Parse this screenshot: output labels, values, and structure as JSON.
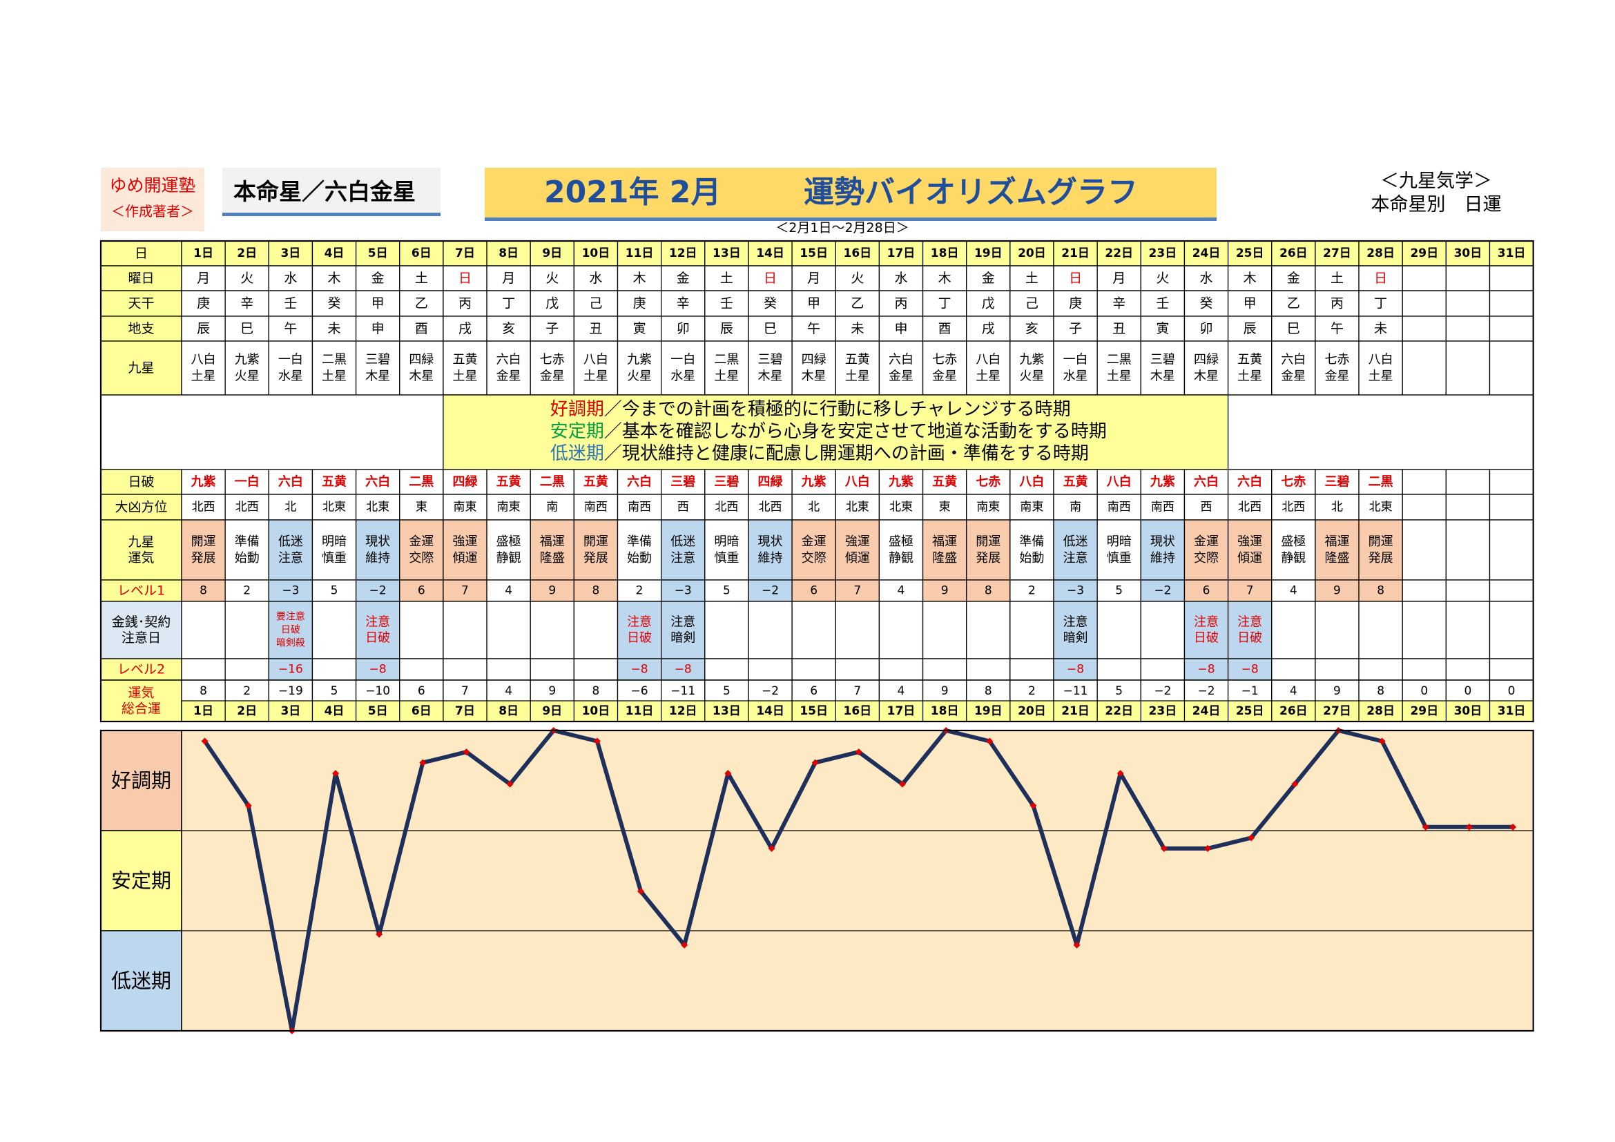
{
  "header": {
    "author_line1": "ゆめ開運塾",
    "author_line2": "＜作成著者＞",
    "honmei": "本命星／六白金星",
    "year_month": "2021年 2月",
    "title": "運勢バイオリズムグラフ",
    "range": "＜2月1日～2月28日＞",
    "school_line1": "＜九星気学＞",
    "school_line2": "本命星別　日運"
  },
  "row_labels": {
    "day": "日",
    "weekday": "曜日",
    "tenkan": "天干",
    "chishi": "地支",
    "kyusei": [
      "九星"
    ],
    "nichiha": "日破",
    "daikyo": "大凶方位",
    "unki": [
      "九星",
      "運気"
    ],
    "level1": "レベル1",
    "money": [
      "金銭･契約",
      "注意日"
    ],
    "level2": "レベル2",
    "total": [
      "運気",
      "総合運"
    ]
  },
  "legend": [
    {
      "term": "好調期",
      "desc": "／今までの計画を積極的に行動に移しチャレンジする時期",
      "color": "#e00000"
    },
    {
      "term": "安定期",
      "desc": "／基本を確認しながら心身を安定させて地道な活動をする時期",
      "color": "#00a040"
    },
    {
      "term": "低迷期",
      "desc": "／現状維持と健康に配慮し開運期への計画・準備をする時期",
      "color": "#2e75b6"
    }
  ],
  "days": [
    "1日",
    "2日",
    "3日",
    "4日",
    "5日",
    "6日",
    "7日",
    "8日",
    "9日",
    "10日",
    "11日",
    "12日",
    "13日",
    "14日",
    "15日",
    "16日",
    "17日",
    "18日",
    "19日",
    "20日",
    "21日",
    "22日",
    "23日",
    "24日",
    "25日",
    "26日",
    "27日",
    "28日",
    "29日",
    "30日",
    "31日"
  ],
  "weekdays": [
    "月",
    "火",
    "水",
    "木",
    "金",
    "土",
    "日",
    "月",
    "火",
    "水",
    "木",
    "金",
    "土",
    "日",
    "月",
    "火",
    "水",
    "木",
    "金",
    "土",
    "日",
    "月",
    "火",
    "水",
    "木",
    "金",
    "土",
    "日",
    "",
    "",
    ""
  ],
  "tenkan": [
    "庚",
    "辛",
    "壬",
    "癸",
    "甲",
    "乙",
    "丙",
    "丁",
    "戊",
    "己",
    "庚",
    "辛",
    "壬",
    "癸",
    "甲",
    "乙",
    "丙",
    "丁",
    "戊",
    "己",
    "庚",
    "辛",
    "壬",
    "癸",
    "甲",
    "乙",
    "丙",
    "丁",
    "",
    "",
    ""
  ],
  "chishi": [
    "辰",
    "巳",
    "午",
    "未",
    "申",
    "酉",
    "戌",
    "亥",
    "子",
    "丑",
    "寅",
    "卯",
    "辰",
    "巳",
    "午",
    "未",
    "申",
    "酉",
    "戌",
    "亥",
    "子",
    "丑",
    "寅",
    "卯",
    "辰",
    "巳",
    "午",
    "未",
    "",
    "",
    ""
  ],
  "kyusei": [
    [
      "八白",
      "土星"
    ],
    [
      "九紫",
      "火星"
    ],
    [
      "一白",
      "水星"
    ],
    [
      "二黒",
      "土星"
    ],
    [
      "三碧",
      "木星"
    ],
    [
      "四緑",
      "木星"
    ],
    [
      "五黄",
      "土星"
    ],
    [
      "六白",
      "金星"
    ],
    [
      "七赤",
      "金星"
    ],
    [
      "八白",
      "土星"
    ],
    [
      "九紫",
      "火星"
    ],
    [
      "一白",
      "水星"
    ],
    [
      "二黒",
      "土星"
    ],
    [
      "三碧",
      "木星"
    ],
    [
      "四緑",
      "木星"
    ],
    [
      "五黄",
      "土星"
    ],
    [
      "六白",
      "金星"
    ],
    [
      "七赤",
      "金星"
    ],
    [
      "八白",
      "土星"
    ],
    [
      "九紫",
      "火星"
    ],
    [
      "一白",
      "水星"
    ],
    [
      "二黒",
      "土星"
    ],
    [
      "三碧",
      "木星"
    ],
    [
      "四緑",
      "木星"
    ],
    [
      "五黄",
      "土星"
    ],
    [
      "六白",
      "金星"
    ],
    [
      "七赤",
      "金星"
    ],
    [
      "八白",
      "土星"
    ],
    [],
    [],
    []
  ],
  "nichiha": [
    "九紫",
    "一白",
    "六白",
    "五黄",
    "六白",
    "二黒",
    "四緑",
    "五黄",
    "二黒",
    "五黄",
    "六白",
    "三碧",
    "三碧",
    "四緑",
    "九紫",
    "八白",
    "九紫",
    "五黄",
    "七赤",
    "八白",
    "五黄",
    "八白",
    "九紫",
    "六白",
    "六白",
    "七赤",
    "三碧",
    "二黒",
    "",
    "",
    ""
  ],
  "daikyo": [
    "北西",
    "北西",
    "北",
    "北東",
    "北東",
    "東",
    "南東",
    "南東",
    "南",
    "南西",
    "南西",
    "西",
    "北西",
    "北西",
    "北",
    "北東",
    "北東",
    "東",
    "南東",
    "南東",
    "南",
    "南西",
    "南西",
    "西",
    "北西",
    "北西",
    "北",
    "北東",
    "",
    "",
    ""
  ],
  "unki": [
    [
      "開運",
      "発展"
    ],
    [
      "準備",
      "始動"
    ],
    [
      "低迷",
      "注意"
    ],
    [
      "明暗",
      "慎重"
    ],
    [
      "現状",
      "維持"
    ],
    [
      "金運",
      "交際"
    ],
    [
      "強運",
      "傾運"
    ],
    [
      "盛極",
      "静観"
    ],
    [
      "福運",
      "隆盛"
    ],
    [
      "開運",
      "発展"
    ],
    [
      "準備",
      "始動"
    ],
    [
      "低迷",
      "注意"
    ],
    [
      "明暗",
      "慎重"
    ],
    [
      "現状",
      "維持"
    ],
    [
      "金運",
      "交際"
    ],
    [
      "強運",
      "傾運"
    ],
    [
      "盛極",
      "静観"
    ],
    [
      "福運",
      "隆盛"
    ],
    [
      "開運",
      "発展"
    ],
    [
      "準備",
      "始動"
    ],
    [
      "低迷",
      "注意"
    ],
    [
      "明暗",
      "慎重"
    ],
    [
      "現状",
      "維持"
    ],
    [
      "金運",
      "交際"
    ],
    [
      "強運",
      "傾運"
    ],
    [
      "盛極",
      "静観"
    ],
    [
      "福運",
      "隆盛"
    ],
    [
      "開運",
      "発展"
    ],
    [],
    [],
    []
  ],
  "level1": [
    "8",
    "2",
    "−3",
    "5",
    "−2",
    "6",
    "7",
    "4",
    "9",
    "8",
    "2",
    "−3",
    "5",
    "−2",
    "6",
    "7",
    "4",
    "9",
    "8",
    "2",
    "−3",
    "5",
    "−2",
    "6",
    "7",
    "4",
    "9",
    "8",
    "",
    "",
    ""
  ],
  "money": [
    [],
    [],
    [
      "要注意",
      "日破",
      "暗剣殺"
    ],
    [],
    [
      "注意",
      "日破"
    ],
    [],
    [],
    [],
    [],
    [],
    [
      "注意",
      "日破"
    ],
    [
      "注意",
      "暗剣"
    ],
    [],
    [],
    [],
    [],
    [],
    [],
    [],
    [],
    [
      "注意",
      "暗剣"
    ],
    [],
    [],
    [
      "注意",
      "日破"
    ],
    [
      "注意",
      "日破"
    ],
    [],
    [],
    [],
    [],
    [],
    []
  ],
  "level2": [
    "",
    "",
    "−16",
    "",
    "−8",
    "",
    "",
    "",
    "",
    "",
    "−8",
    "−8",
    "",
    "",
    "",
    "",
    "",
    "",
    "",
    "",
    "−8",
    "",
    "",
    "−8",
    "−8",
    "",
    "",
    "",
    "",
    "",
    ""
  ],
  "total": [
    "8",
    "2",
    "−19",
    "5",
    "−10",
    "6",
    "7",
    "4",
    "9",
    "8",
    "−6",
    "−11",
    "5",
    "−2",
    "6",
    "7",
    "4",
    "9",
    "8",
    "2",
    "−11",
    "5",
    "−2",
    "−2",
    "−1",
    "4",
    "9",
    "8",
    "0",
    "0",
    "0"
  ],
  "colors": {
    "header_yellow": "#ffff99",
    "peach": "#f8cbad",
    "blue": "#bdd7ee",
    "chart_bg": "#fde9c3",
    "line": "#1f2f5c",
    "marker": "#e00000",
    "red_text": "#e00000"
  },
  "chart_data": {
    "type": "line",
    "x": [
      "1日",
      "2日",
      "3日",
      "4日",
      "5日",
      "6日",
      "7日",
      "8日",
      "9日",
      "10日",
      "11日",
      "12日",
      "13日",
      "14日",
      "15日",
      "16日",
      "17日",
      "18日",
      "19日",
      "20日",
      "21日",
      "22日",
      "23日",
      "24日",
      "25日",
      "26日",
      "27日",
      "28日",
      "29日",
      "30日",
      "31日"
    ],
    "values": [
      8,
      2,
      -19,
      5,
      -10,
      6,
      7,
      4,
      9,
      8,
      -6,
      -11,
      5,
      -2,
      6,
      7,
      4,
      9,
      8,
      2,
      -11,
      5,
      -2,
      -2,
      -1,
      4,
      9,
      8,
      0,
      0,
      0
    ],
    "ylim": [
      -19,
      9
    ],
    "bands": [
      "好調期",
      "安定期",
      "低迷期"
    ],
    "grid": "band boundaries only"
  }
}
